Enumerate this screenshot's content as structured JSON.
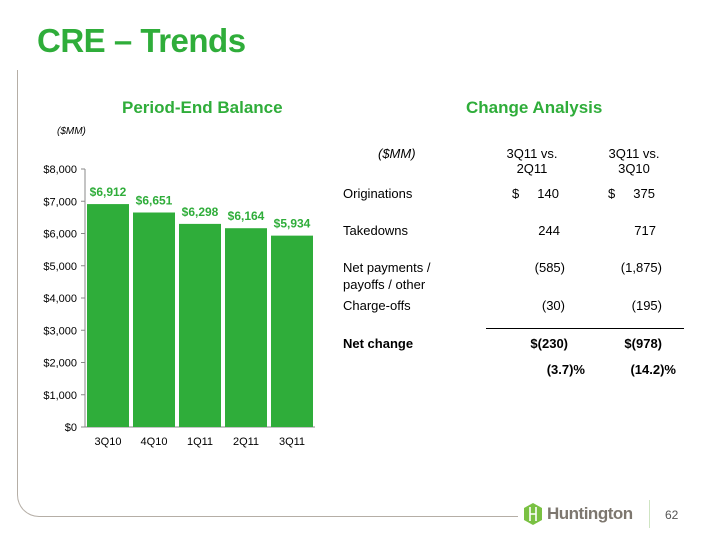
{
  "title": "CRE – Trends",
  "left_heading": "Period-End Balance",
  "right_heading": "Change Analysis",
  "chart_data": {
    "type": "bar",
    "title": "Period-End Balance",
    "ylabel": "($MM)",
    "categories": [
      "3Q10",
      "4Q10",
      "1Q11",
      "2Q11",
      "3Q11"
    ],
    "values": [
      6912,
      6651,
      6298,
      6164,
      5934
    ],
    "data_labels": [
      "$6,912",
      "$6,651",
      "$6,298",
      "$6,164",
      "$5,934"
    ],
    "yticks": [
      0,
      1000,
      2000,
      3000,
      4000,
      5000,
      6000,
      7000,
      8000
    ],
    "ytick_labels": [
      "$0",
      "$1,000",
      "$2,000",
      "$3,000",
      "$4,000",
      "$5,000",
      "$6,000",
      "$7,000",
      "$8,000"
    ],
    "ylim": [
      0,
      8000
    ],
    "bar_color": "#2fad3a"
  },
  "table": {
    "unit": "($MM)",
    "col1": [
      "3Q11 vs.",
      "2Q11"
    ],
    "col2": [
      "3Q11 vs.",
      "3Q10"
    ],
    "rows": [
      {
        "label": "Originations",
        "v1": "$     140",
        "v2": "$     375"
      },
      {
        "label": "Takedowns",
        "v1": "244",
        "v2": "717"
      },
      {
        "label": "Net payments /",
        "label2": "payoffs / other",
        "v1": "(585)",
        "v2": "(1,875)"
      },
      {
        "label": "Charge-offs",
        "v1": "(30)",
        "v2": "(195)"
      }
    ],
    "net": {
      "label": "Net change",
      "v1": "$(230)",
      "v2": "$(978)",
      "p1": "(3.7)%",
      "p2": "(14.2)%"
    }
  },
  "footer": {
    "logo": "Huntington",
    "page": "62"
  }
}
